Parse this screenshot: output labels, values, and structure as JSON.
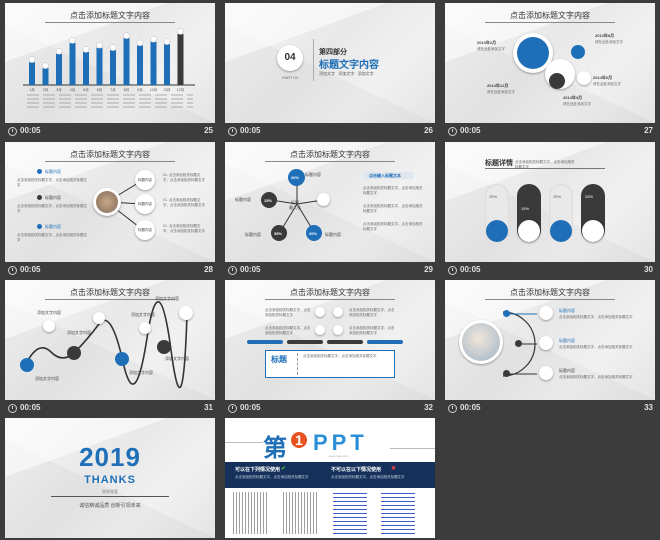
{
  "common": {
    "slide_title": "点击添加标题文字内容",
    "duration": "00:05",
    "lorem": "点击添加相关标题文字，点击添加相关标题文字"
  },
  "slides": [
    {
      "num": "25"
    },
    {
      "num": "26"
    },
    {
      "num": "27"
    },
    {
      "num": "28"
    },
    {
      "num": "29"
    },
    {
      "num": "30"
    },
    {
      "num": "31"
    },
    {
      "num": "32"
    },
    {
      "num": "33"
    },
    {
      "num": ""
    },
    {
      "num": ""
    }
  ],
  "s25": {
    "values": [
      38,
      28,
      52,
      70,
      55,
      62,
      58,
      78,
      66,
      72,
      68,
      85
    ],
    "colors": [
      "#1f6fb8",
      "#1f6fb8",
      "#1f6fb8",
      "#1f6fb8",
      "#1f6fb8",
      "#1f6fb8",
      "#1f6fb8",
      "#1f6fb8",
      "#1f6fb8",
      "#1f6fb8",
      "#1f6fb8",
      "#3a3a3a"
    ],
    "months": [
      "1月",
      "2月",
      "3月",
      "4月",
      "5月",
      "6月",
      "7月",
      "8月",
      "9月",
      "10月",
      "11月",
      "12月"
    ]
  },
  "s26": {
    "number": "04",
    "part": "PART 04",
    "heading": "第四部分",
    "title": "标题文字内容",
    "item": "添加文字"
  },
  "s27": {
    "y1": "2013年2月",
    "y2": "2013年8月",
    "y3": "2014年12月",
    "y4": "2014年6月",
    "y5": "2014年3月",
    "text": "请在此处添加文字"
  },
  "s28": {
    "center": "标题内容",
    "title": "标题内容",
    "item": "01. 点击添加相关标题文字，点击添加相关标题文字"
  },
  "s29": {
    "center": "标题\n最大化",
    "p1": "20%",
    "p2": "15%",
    "p3": "35%",
    "p4": "20%",
    "label": "标题内容",
    "banner": "点击输入标题文本"
  },
  "s30": {
    "heading": "标题详情",
    "p1": "25%",
    "p2": "15%",
    "p3": "25%",
    "p4": "25%"
  },
  "s31": {
    "label": "添加文字内容"
  },
  "s32": {
    "title": "标题"
  },
  "s33": {
    "title": "标题内容"
  },
  "s34": {
    "year": "2019",
    "thanks": "THANKS",
    "sub": "谢谢观看",
    "slogan": "诚信精诚品质 创新引领未来"
  },
  "s35": {
    "logo_main": "第",
    "logo_num": "1",
    "logo_ppt": "PPT",
    "url": "www.1ppt.com",
    "can_title": "可以在下列情况使用",
    "cannot_title": "不可以在以下情况使用"
  }
}
